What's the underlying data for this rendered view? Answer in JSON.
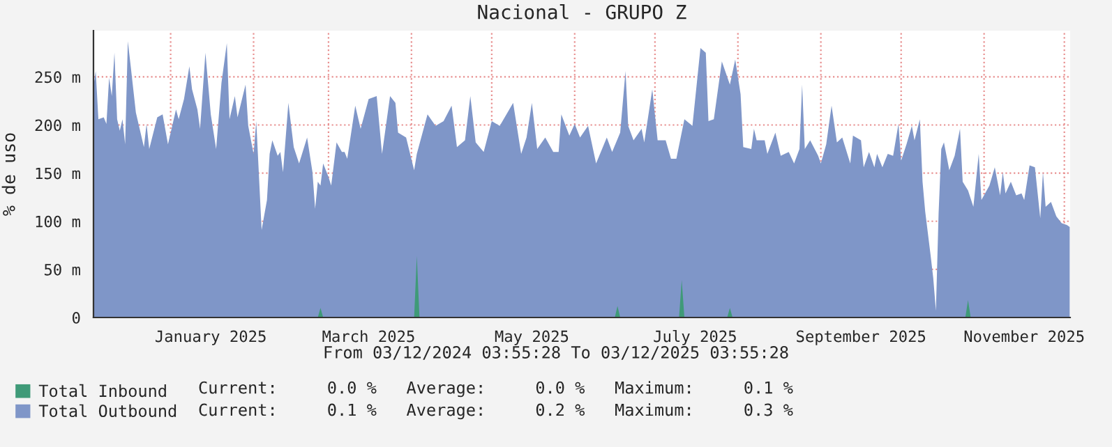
{
  "chart_data": {
    "type": "area",
    "title": "Nacional - GRUPO Z",
    "ylabel": "% de uso",
    "annotations": [
      "From 03/12/2024 03:55:28 To 03/12/2025 03:55:28",
      "Current:     0.0 %   Average:     0.0 %   Maximum:     0.1 %",
      "Current:     0.1 %   Average:     0.2 %   Maximum:     0.3 %"
    ],
    "xlim": [
      "2024-12-03T03:55",
      "2025-12-03T03:55"
    ],
    "xticks": [
      {
        "value": "2025-01-01",
        "label": null
      },
      {
        "value": "2025-01-16",
        "label": "January 2025"
      },
      {
        "value": "2025-02-01",
        "label": null
      },
      {
        "value": "2025-03-01",
        "label": null
      },
      {
        "value": "2025-03-16",
        "label": "March 2025"
      },
      {
        "value": "2025-04-01",
        "label": null
      },
      {
        "value": "2025-05-01",
        "label": null
      },
      {
        "value": "2025-05-16",
        "label": "May 2025"
      },
      {
        "value": "2025-06-01",
        "label": null
      },
      {
        "value": "2025-07-01",
        "label": null
      },
      {
        "value": "2025-07-16",
        "label": "July 2025"
      },
      {
        "value": "2025-08-01",
        "label": null
      },
      {
        "value": "2025-09-01",
        "label": null
      },
      {
        "value": "2025-09-16",
        "label": "September 2025"
      },
      {
        "value": "2025-10-01",
        "label": null
      },
      {
        "value": "2025-11-01",
        "label": null
      },
      {
        "value": "2025-11-16",
        "label": "November 2025"
      },
      {
        "value": "2025-12-01",
        "label": null
      }
    ],
    "ylim": [
      0,
      298
    ],
    "yticks": [
      {
        "value": 0,
        "label": "0"
      },
      {
        "value": 50,
        "label": "50 m"
      },
      {
        "value": 100,
        "label": "100 m"
      },
      {
        "value": 150,
        "label": "150 m"
      },
      {
        "value": 200,
        "label": "200 m"
      },
      {
        "value": 250,
        "label": "250 m"
      }
    ],
    "grid": true,
    "legend": "bottom",
    "series": [
      {
        "name": "Total Outbound",
        "color": "#7f96c8",
        "x": [
          "2024-12-03T04:00",
          "2024-12-04",
          "2024-12-05",
          "2024-12-07",
          "2024-12-08",
          "2024-12-09",
          "2024-12-10",
          "2024-12-11",
          "2024-12-12",
          "2024-12-13",
          "2024-12-14",
          "2024-12-15",
          "2024-12-16",
          "2024-12-17",
          "2024-12-19",
          "2024-12-20",
          "2024-12-22",
          "2024-12-23",
          "2024-12-24",
          "2024-12-27",
          "2024-12-29",
          "2024-12-31",
          "2025-01-03",
          "2025-01-04",
          "2025-01-06",
          "2025-01-08",
          "2025-01-09",
          "2025-01-11",
          "2025-01-12",
          "2025-01-14",
          "2025-01-16",
          "2025-01-18",
          "2025-01-20",
          "2025-01-22",
          "2025-01-23",
          "2025-01-25",
          "2025-01-26",
          "2025-01-29",
          "2025-01-30",
          "2025-02-01",
          "2025-02-02",
          "2025-02-04",
          "2025-02-06",
          "2025-02-07",
          "2025-02-08",
          "2025-02-10",
          "2025-02-11",
          "2025-02-12",
          "2025-02-14",
          "2025-02-16",
          "2025-02-18",
          "2025-02-21",
          "2025-02-23",
          "2025-02-24",
          "2025-02-25",
          "2025-02-26",
          "2025-02-27",
          "2025-03-01",
          "2025-03-02",
          "2025-03-04",
          "2025-03-06",
          "2025-03-07",
          "2025-03-08",
          "2025-03-11",
          "2025-03-13",
          "2025-03-16",
          "2025-03-19",
          "2025-03-21",
          "2025-03-24",
          "2025-03-26",
          "2025-03-27",
          "2025-03-30",
          "2025-04-02",
          "2025-04-03",
          "2025-04-07",
          "2025-04-10",
          "2025-04-13",
          "2025-04-16",
          "2025-04-18",
          "2025-04-21",
          "2025-04-23",
          "2025-04-25",
          "2025-04-28",
          "2025-05-01",
          "2025-05-04",
          "2025-05-09",
          "2025-05-12",
          "2025-05-14",
          "2025-05-16",
          "2025-05-18",
          "2025-05-21",
          "2025-05-24",
          "2025-05-26",
          "2025-05-27",
          "2025-05-30",
          "2025-06-01",
          "2025-06-03",
          "2025-06-06",
          "2025-06-09",
          "2025-06-13",
          "2025-06-15",
          "2025-06-18",
          "2025-06-20",
          "2025-06-21",
          "2025-06-23",
          "2025-06-26",
          "2025-06-27",
          "2025-06-30",
          "2025-07-02",
          "2025-07-05",
          "2025-07-07",
          "2025-07-09",
          "2025-07-12",
          "2025-07-15",
          "2025-07-18",
          "2025-07-20",
          "2025-07-21",
          "2025-07-23",
          "2025-07-26",
          "2025-07-29",
          "2025-07-31",
          "2025-08-02",
          "2025-08-03",
          "2025-08-06",
          "2025-08-07",
          "2025-08-08",
          "2025-08-11",
          "2025-08-12",
          "2025-08-15",
          "2025-08-17",
          "2025-08-20",
          "2025-08-22",
          "2025-08-24",
          "2025-08-25",
          "2025-08-26",
          "2025-08-28",
          "2025-08-31",
          "2025-09-01",
          "2025-09-03",
          "2025-09-05",
          "2025-09-07",
          "2025-09-09",
          "2025-09-12",
          "2025-09-13",
          "2025-09-16",
          "2025-09-17",
          "2025-09-19",
          "2025-09-21",
          "2025-09-22",
          "2025-09-24",
          "2025-09-26",
          "2025-09-28",
          "2025-09-30",
          "2025-10-01",
          "2025-10-03",
          "2025-10-05",
          "2025-10-06",
          "2025-10-08",
          "2025-10-09",
          "2025-10-10",
          "2025-10-12",
          "2025-10-13",
          "2025-10-14",
          "2025-10-15",
          "2025-10-16",
          "2025-10-17",
          "2025-10-19",
          "2025-10-21",
          "2025-10-23",
          "2025-10-24",
          "2025-10-26",
          "2025-10-28",
          "2025-10-30",
          "2025-10-31",
          "2025-11-03",
          "2025-11-05",
          "2025-11-07",
          "2025-11-08",
          "2025-11-09",
          "2025-11-11",
          "2025-11-13",
          "2025-11-15",
          "2025-11-16",
          "2025-11-18",
          "2025-11-20",
          "2025-11-22",
          "2025-11-23",
          "2025-11-24",
          "2025-11-26",
          "2025-11-28",
          "2025-11-30",
          "2025-12-02",
          "2025-12-03"
        ],
        "values": [
          240,
          256,
          206,
          208,
          201,
          249,
          230,
          275,
          206,
          194,
          206,
          180,
          287,
          263,
          213,
          201,
          177,
          201,
          175,
          208,
          211,
          180,
          216,
          206,
          227,
          261,
          237,
          216,
          196,
          275,
          211,
          175,
          244,
          285,
          206,
          230,
          208,
          242,
          199,
          170,
          204,
          91,
          122,
          170,
          184,
          168,
          172,
          151,
          223,
          177,
          160,
          187,
          151,
          113,
          141,
          137,
          160,
          146,
          137,
          182,
          172,
          172,
          165,
          220,
          196,
          227,
          230,
          170,
          230,
          223,
          192,
          187,
          153,
          170,
          211,
          199,
          204,
          220,
          177,
          184,
          230,
          182,
          172,
          204,
          199,
          223,
          170,
          187,
          223,
          175,
          187,
          172,
          172,
          211,
          189,
          201,
          187,
          199,
          160,
          187,
          172,
          192,
          256,
          199,
          184,
          196,
          182,
          237,
          184,
          184,
          165,
          165,
          206,
          199,
          280,
          275,
          204,
          206,
          266,
          242,
          268,
          232,
          177,
          175,
          196,
          184,
          184,
          170,
          192,
          168,
          172,
          160,
          175,
          242,
          175,
          184,
          168,
          160,
          180,
          220,
          182,
          187,
          160,
          189,
          184,
          156,
          172,
          156,
          170,
          156,
          170,
          168,
          201,
          163,
          180,
          199,
          184,
          206,
          141,
          110,
          65,
          41,
          7,
          108,
          175,
          182,
          153,
          168,
          196,
          141,
          132,
          115,
          170,
          122,
          137,
          156,
          127,
          151,
          129,
          141,
          127,
          129,
          122,
          158,
          156,
          103,
          151,
          115,
          120,
          105,
          98,
          96,
          94
        ]
      },
      {
        "name": "Total Inbound",
        "color": "#3f9a78",
        "x": [
          "2024-12-03T04:00",
          "2025-02-25",
          "2025-02-26",
          "2025-02-27",
          "2025-04-02",
          "2025-04-03",
          "2025-04-04",
          "2025-06-16",
          "2025-06-17",
          "2025-06-18",
          "2025-07-10",
          "2025-07-11",
          "2025-07-12",
          "2025-07-28",
          "2025-07-29",
          "2025-07-30",
          "2025-10-25",
          "2025-10-26",
          "2025-10-27",
          "2025-12-03"
        ],
        "values": [
          0,
          0,
          10,
          0,
          0,
          64,
          0,
          0,
          12,
          0,
          0,
          39,
          0,
          0,
          10,
          0,
          0,
          18,
          0,
          0
        ]
      }
    ]
  }
}
